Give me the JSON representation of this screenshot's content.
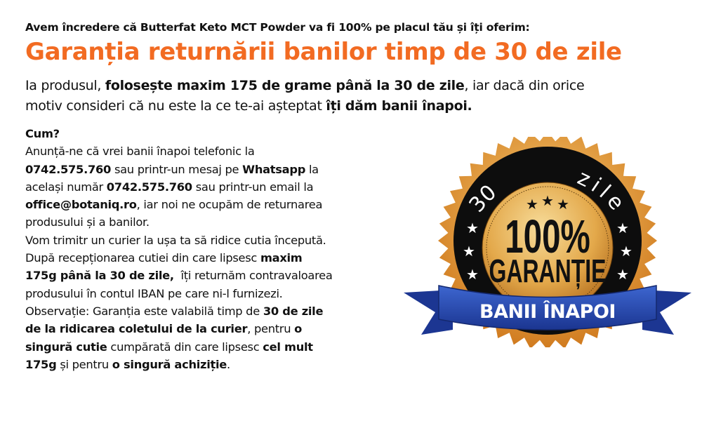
{
  "intro": "Avem încredere că Butterfat Keto MCT Powder va fi 100% pe placul tău și îți oferim:",
  "title": "Garanția returnării banilor timp de 30 de zile",
  "lead": [
    [
      {
        "t": "Ia produsul, "
      },
      {
        "t": "folosește maxim 175 de grame până la 30 de zile",
        "b": true
      },
      {
        "t": ", iar dacă din orice"
      }
    ],
    [
      {
        "t": "motiv consideri că nu este la ce te-ai așteptat "
      },
      {
        "t": "îți dăm banii înapoi.",
        "b": true
      }
    ]
  ],
  "body": [
    [
      {
        "t": "Cum?",
        "b": true
      }
    ],
    [
      {
        "t": "Anunță-ne că vrei banii înapoi telefonic la"
      }
    ],
    [
      {
        "t": "0742.575.760",
        "b": true
      },
      {
        "t": " sau printr-un mesaj pe "
      },
      {
        "t": "Whatsapp",
        "b": true
      },
      {
        "t": " la"
      }
    ],
    [
      {
        "t": "același număr "
      },
      {
        "t": "0742.575.760",
        "b": true
      },
      {
        "t": " sau printr-un email la"
      }
    ],
    [
      {
        "t": "office@botaniq.ro",
        "b": true
      },
      {
        "t": ", iar noi ne ocupăm de returnarea"
      }
    ],
    [
      {
        "t": "produsului și a banilor."
      }
    ],
    [
      {
        "t": "Vom trimitr un curier la ușa ta să ridice cutia începută."
      }
    ],
    [
      {
        "t": "După recepționarea cutiei din care lipsesc "
      },
      {
        "t": "maxim",
        "b": true
      }
    ],
    [
      {
        "t": "175g până la 30 de zile,",
        "b": true
      },
      {
        "t": "  îți returnăm contravaloarea"
      }
    ],
    [
      {
        "t": "produsului în contul IBAN pe care ni-l furnizezi."
      }
    ],
    [
      {
        "t": "Observație: Garanția este valabilă timp de "
      },
      {
        "t": "30 de zile",
        "b": true
      }
    ],
    [
      {
        "t": "de la ridicarea coletului de la curier",
        "b": true
      },
      {
        "t": ", pentru "
      },
      {
        "t": "o",
        "b": true
      }
    ],
    [
      {
        "t": "singură cutie",
        "b": true
      },
      {
        "t": " cumpărată din care lipsesc "
      },
      {
        "t": "cel mult",
        "b": true
      }
    ],
    [
      {
        "t": "175g",
        "b": true
      },
      {
        "t": " și pentru "
      },
      {
        "t": "o singură achiziție",
        "b": true
      },
      {
        "t": "."
      }
    ]
  ],
  "badge": {
    "arc_left": "30",
    "arc_right": "zile",
    "line1": "100%",
    "line2": "GARANȚIE",
    "ribbon": "BANII ÎNAPOI",
    "colors": {
      "accent": "#f26b22",
      "gold": "#e8a53c",
      "ribbon": "#2b4fb3",
      "ring": "#111111"
    }
  }
}
